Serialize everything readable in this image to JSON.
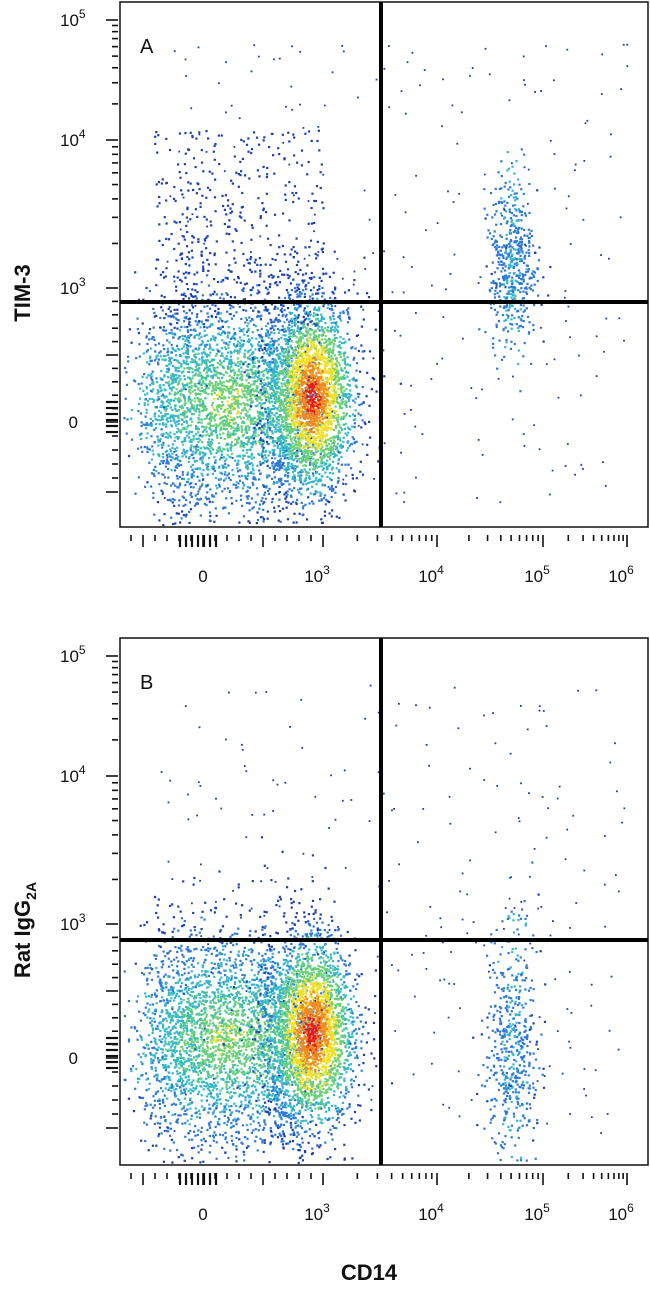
{
  "chart_data": [
    {
      "type": "scatter",
      "panel_label": "A",
      "xlabel": "CD14",
      "ylabel": "TIM-3",
      "x_scale": "biexponential",
      "y_scale": "biexponential",
      "x_ticks": [
        "0",
        "10^3",
        "10^4",
        "10^5",
        "10^6"
      ],
      "y_ticks": [
        "0",
        "10^3",
        "10^4",
        "10^5"
      ],
      "gate_x": 3000,
      "gate_y": 750,
      "populations": [
        {
          "name": "CD14-low",
          "x_center": 200,
          "y_center": 150,
          "density": "high"
        },
        {
          "name": "CD14-mid",
          "x_center": 900,
          "y_center": 200,
          "density": "very high"
        },
        {
          "name": "CD14-low TIM-3+",
          "x_center": 300,
          "y_center": 2500,
          "density": "low"
        },
        {
          "name": "CD14-high TIM-3+",
          "x_center": 50000,
          "y_center": 1500,
          "density": "medium"
        }
      ],
      "colormap": [
        "#1c3fb3",
        "#2f78d8",
        "#35b8c8",
        "#6cd07a",
        "#f0e02a",
        "#f08a1f",
        "#e01e1e"
      ]
    },
    {
      "type": "scatter",
      "panel_label": "B",
      "xlabel": "CD14",
      "ylabel": "Rat IgG2A",
      "ylabel_main": "Rat IgG",
      "ylabel_sub": "2A",
      "x_scale": "biexponential",
      "y_scale": "biexponential",
      "x_ticks": [
        "0",
        "10^3",
        "10^4",
        "10^5",
        "10^6"
      ],
      "y_ticks": [
        "0",
        "10^3",
        "10^4",
        "10^5"
      ],
      "gate_x": 3000,
      "gate_y": 750,
      "populations": [
        {
          "name": "CD14-low",
          "x_center": 200,
          "y_center": 150,
          "density": "high"
        },
        {
          "name": "CD14-mid",
          "x_center": 900,
          "y_center": 200,
          "density": "very high"
        },
        {
          "name": "CD14-high",
          "x_center": 50000,
          "y_center": 100,
          "density": "medium"
        }
      ],
      "colormap": [
        "#1c3fb3",
        "#2f78d8",
        "#35b8c8",
        "#6cd07a",
        "#f0e02a",
        "#f08a1f",
        "#e01e1e"
      ]
    }
  ],
  "shared_xlabel": "CD14"
}
